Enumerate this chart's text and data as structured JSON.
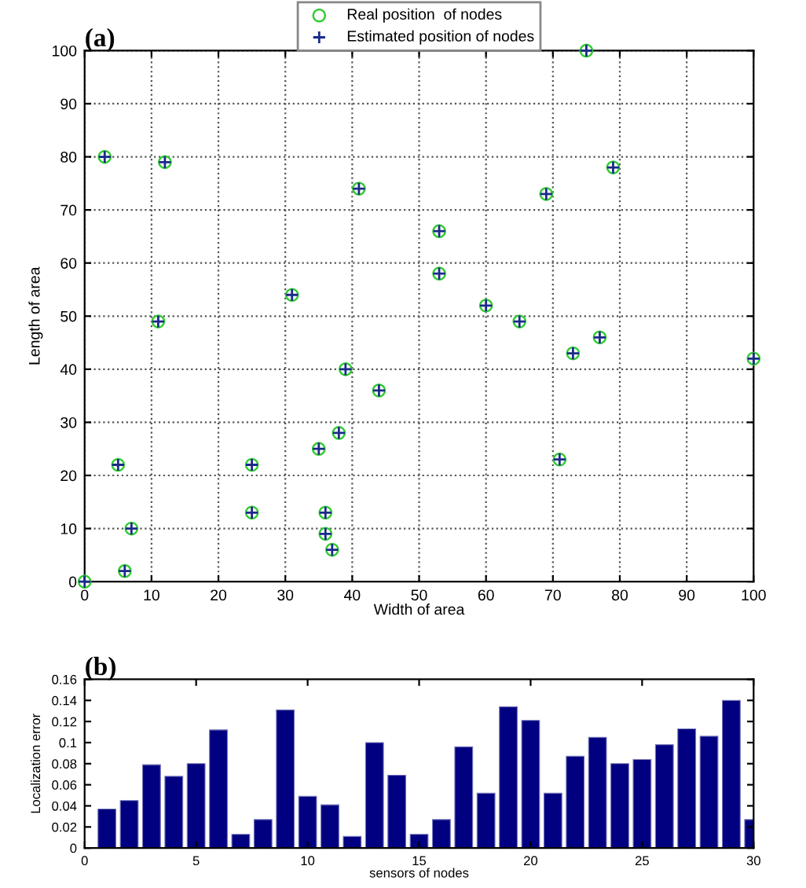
{
  "chart_data": [
    {
      "type": "scatter",
      "title": "(a)",
      "xlabel": "Width of area",
      "ylabel": "Length of area",
      "xlim": [
        0,
        100
      ],
      "ylim": [
        0,
        100
      ],
      "xticks": [
        0,
        10,
        20,
        30,
        40,
        50,
        60,
        70,
        80,
        90,
        100
      ],
      "yticks": [
        0,
        10,
        20,
        30,
        40,
        50,
        60,
        70,
        80,
        90,
        100
      ],
      "grid": true,
      "legend": "top",
      "series": [
        {
          "name": "Real position  of nodes",
          "color": "#33cc33",
          "marker": "circle",
          "x": [
            0,
            3,
            12,
            41,
            53,
            53,
            69,
            75,
            79,
            31,
            60,
            11,
            65,
            77,
            73,
            100,
            39,
            44,
            38,
            35,
            5,
            25,
            71,
            25,
            36,
            7,
            36,
            37,
            6
          ],
          "values": [
            0,
            80,
            79,
            74,
            66,
            58,
            73,
            100,
            78,
            54,
            52,
            49,
            49,
            46,
            43,
            42,
            40,
            36,
            28,
            25,
            22,
            22,
            23,
            13,
            13,
            10,
            9,
            6,
            2
          ]
        },
        {
          "name": "Estimated position of nodes",
          "color": "#1a2a8a",
          "marker": "cross",
          "x": [
            0,
            3,
            12,
            41,
            53,
            53,
            69,
            75,
            79,
            31,
            60,
            11,
            65,
            77,
            73,
            100,
            39,
            44,
            38,
            35,
            5,
            25,
            71,
            25,
            36,
            7,
            36,
            37,
            6
          ],
          "values": [
            0,
            80,
            79,
            74,
            66,
            58,
            73,
            100,
            78,
            54,
            52,
            49,
            49,
            46,
            43,
            42,
            40,
            36,
            28,
            25,
            22,
            22,
            23,
            13,
            13,
            10,
            9,
            6,
            2
          ]
        }
      ]
    },
    {
      "type": "bar",
      "title": "(b)",
      "xlabel": "sensors of nodes",
      "ylabel": "Localization error",
      "color": "#000080",
      "xlim": [
        0,
        30
      ],
      "ylim": [
        0,
        0.16
      ],
      "xticks": [
        0,
        5,
        10,
        15,
        20,
        25,
        30
      ],
      "yticks": [
        0,
        0.02,
        0.04,
        0.06,
        0.08,
        0.1,
        0.12,
        0.14,
        0.16
      ],
      "grid": false,
      "x": [
        1,
        2,
        3,
        4,
        5,
        6,
        7,
        8,
        9,
        10,
        11,
        12,
        13,
        14,
        15,
        16,
        17,
        18,
        19,
        20,
        21,
        22,
        23,
        24,
        25,
        26,
        27,
        28,
        29,
        30
      ],
      "values": [
        0.037,
        0.045,
        0.079,
        0.068,
        0.08,
        0.112,
        0.013,
        0.027,
        0.131,
        0.049,
        0.041,
        0.011,
        0.1,
        0.069,
        0.013,
        0.027,
        0.096,
        0.052,
        0.134,
        0.121,
        0.052,
        0.087,
        0.105,
        0.08,
        0.084,
        0.098,
        0.113,
        0.106,
        0.14,
        0.027
      ]
    }
  ]
}
